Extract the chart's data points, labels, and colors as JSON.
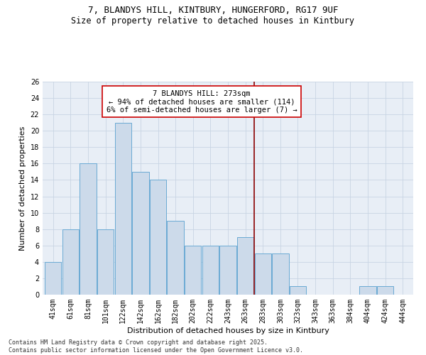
{
  "title_line1": "7, BLANDYS HILL, KINTBURY, HUNGERFORD, RG17 9UF",
  "title_line2": "Size of property relative to detached houses in Kintbury",
  "xlabel": "Distribution of detached houses by size in Kintbury",
  "ylabel": "Number of detached properties",
  "categories": [
    "41sqm",
    "61sqm",
    "81sqm",
    "101sqm",
    "122sqm",
    "142sqm",
    "162sqm",
    "182sqm",
    "202sqm",
    "222sqm",
    "243sqm",
    "263sqm",
    "283sqm",
    "303sqm",
    "323sqm",
    "343sqm",
    "363sqm",
    "384sqm",
    "404sqm",
    "424sqm",
    "444sqm"
  ],
  "values": [
    4,
    8,
    16,
    8,
    21,
    15,
    14,
    9,
    6,
    6,
    6,
    7,
    5,
    5,
    1,
    0,
    0,
    0,
    1,
    1,
    0
  ],
  "bar_color": "#ccdaea",
  "bar_edge_color": "#6aaad4",
  "annotation_text_line1": "7 BLANDYS HILL: 273sqm",
  "annotation_text_line2": "← 94% of detached houses are smaller (114)",
  "annotation_text_line3": "6% of semi-detached houses are larger (7) →",
  "annotation_box_color": "#ffffff",
  "annotation_border_color": "#cc0000",
  "vline_color": "#8b0000",
  "vline_x": 11.5,
  "ylim": [
    0,
    26
  ],
  "yticks": [
    0,
    2,
    4,
    6,
    8,
    10,
    12,
    14,
    16,
    18,
    20,
    22,
    24,
    26
  ],
  "grid_color": "#c8d4e3",
  "background_color": "#e8eef6",
  "footer_line1": "Contains HM Land Registry data © Crown copyright and database right 2025.",
  "footer_line2": "Contains public sector information licensed under the Open Government Licence v3.0.",
  "title_fontsize": 9,
  "subtitle_fontsize": 8.5,
  "axis_label_fontsize": 8,
  "tick_fontsize": 7,
  "annotation_fontsize": 7.5,
  "footer_fontsize": 6
}
